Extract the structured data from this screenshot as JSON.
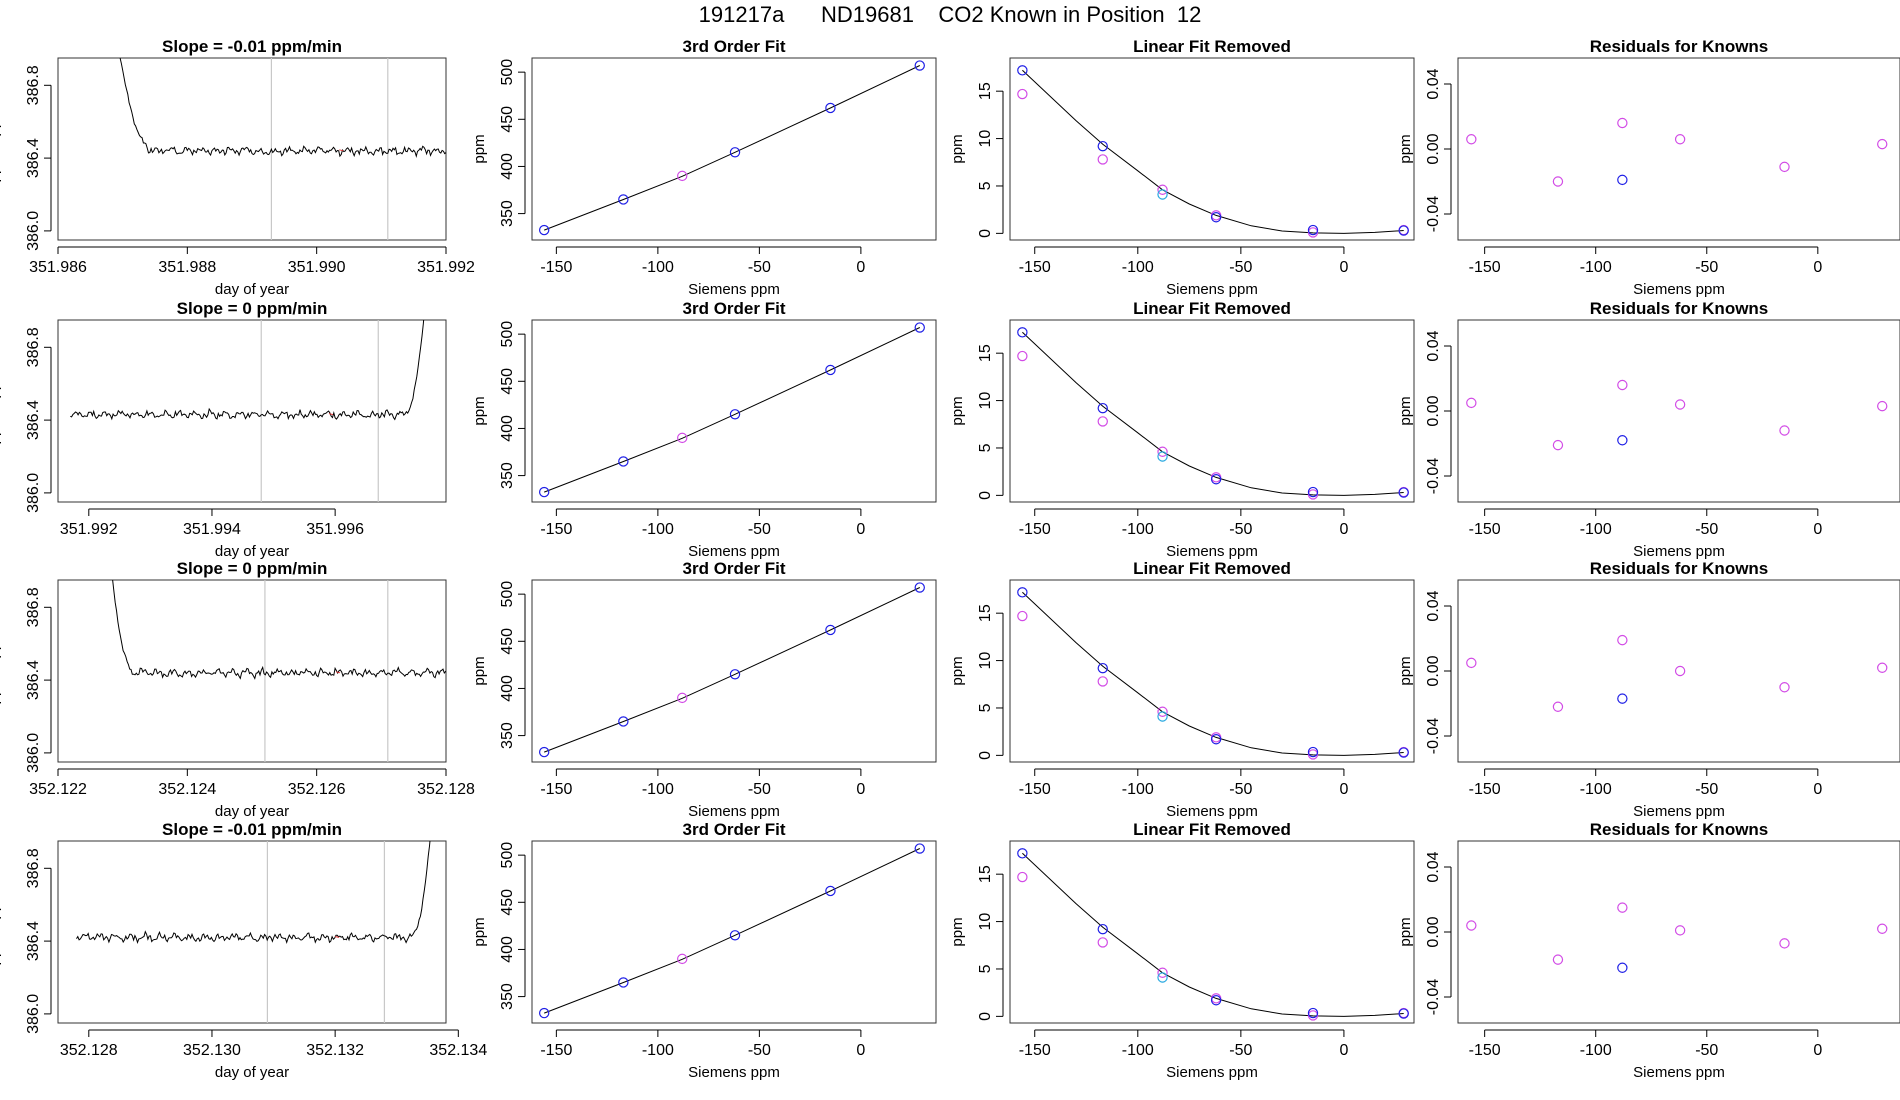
{
  "title": "191217a      ND19681    CO2 Known in Position  12",
  "colors": {
    "line": "#000000",
    "blue": "#1f1fe6",
    "magenta": "#d24be6",
    "cyan": "#27a8e0",
    "grey": "#c8c8c8",
    "red": "#e43a3a"
  },
  "chart_data": [
    {
      "type": "line",
      "row": 0,
      "title": "Slope =  -0.01  ppm/min",
      "xlabel": "day of year",
      "ylabel": "approx. ppm",
      "xlim": [
        351.986,
        351.992
      ],
      "ylim": [
        385.95,
        386.95
      ],
      "xticks": [
        351.986,
        351.988,
        351.99,
        351.992
      ],
      "xtick_labels": [
        "351.986",
        "351.988",
        "351.990",
        "351.992"
      ],
      "yticks": [
        386.0,
        386.4,
        386.8
      ],
      "ytick_labels": [
        "386.0",
        "386.4",
        "386.8"
      ],
      "vlines": [
        351.9893,
        351.9911
      ],
      "series": {
        "start": 351.9866,
        "end": 351.9922,
        "baseline": 386.44,
        "transient": "drop-in",
        "transient_end": 351.9875,
        "seed": 3
      }
    },
    {
      "type": "line",
      "row": 1,
      "title": "Slope =  0  ppm/min",
      "xlabel": "day of year",
      "ylabel": "approx. ppm",
      "xlim": [
        351.9915,
        351.9978
      ],
      "ylim": [
        385.95,
        386.95
      ],
      "xticks": [
        351.992,
        351.994,
        351.996
      ],
      "xtick_labels": [
        "351.992",
        "351.994",
        "351.996"
      ],
      "yticks": [
        386.0,
        386.4,
        386.8
      ],
      "ytick_labels": [
        "386.0",
        "386.4",
        "386.8"
      ],
      "vlines": [
        351.9948,
        351.9967
      ],
      "series": {
        "start": 351.9917,
        "end": 351.9976,
        "baseline": 386.43,
        "transient": "rise-out",
        "transient_start": 351.9971,
        "seed": 11
      }
    },
    {
      "type": "line",
      "row": 2,
      "title": "Slope =  0  ppm/min",
      "xlabel": "day of year",
      "ylabel": "approx. ppm",
      "xlim": [
        352.122,
        352.128
      ],
      "ylim": [
        385.95,
        386.95
      ],
      "xticks": [
        352.122,
        352.124,
        352.126,
        352.128
      ],
      "xtick_labels": [
        "352.122",
        "352.124",
        "352.126",
        "352.128"
      ],
      "yticks": [
        386.0,
        386.4,
        386.8
      ],
      "ytick_labels": [
        "386.0",
        "386.4",
        "386.8"
      ],
      "vlines": [
        352.1252,
        352.1271
      ],
      "series": {
        "start": 352.1226,
        "end": 352.1283,
        "baseline": 386.44,
        "transient": "drop-in",
        "transient_end": 352.1232,
        "seed": 21
      }
    },
    {
      "type": "line",
      "row": 3,
      "title": "Slope =  -0.01  ppm/min",
      "xlabel": "day of year",
      "ylabel": "approx. ppm",
      "xlim": [
        352.1275,
        352.1338
      ],
      "ylim": [
        385.95,
        386.95
      ],
      "xticks": [
        352.128,
        352.13,
        352.132,
        352.134
      ],
      "xtick_labels": [
        "352.128",
        "352.130",
        "352.132",
        "352.134"
      ],
      "yticks": [
        386.0,
        386.4,
        386.8
      ],
      "ytick_labels": [
        "386.0",
        "386.4",
        "386.8"
      ],
      "vlines": [
        352.1309,
        352.1328
      ],
      "series": {
        "start": 352.1278,
        "end": 352.1337,
        "baseline": 386.42,
        "transient": "rise-out",
        "transient_start": 352.1332,
        "seed": 37
      }
    },
    {
      "type": "scatter",
      "title": "3rd Order Fit",
      "xlabel": "Siemens ppm",
      "ylabel": "ppm",
      "xlim": [
        -162,
        37
      ],
      "ylim": [
        322,
        515
      ],
      "xticks": [
        -150,
        -100,
        -50,
        0
      ],
      "xtick_labels": [
        "-150",
        "-100",
        "-50",
        "0"
      ],
      "yticks": [
        350,
        400,
        450,
        500
      ],
      "ytick_labels": [
        "350",
        "400",
        "450",
        "500"
      ],
      "fit_curve": [
        [
          -156,
          332.5
        ],
        [
          -117,
          365
        ],
        [
          -88,
          389.5
        ],
        [
          -62,
          415
        ],
        [
          -15,
          462
        ],
        [
          29,
          507
        ]
      ],
      "points_blue": [
        [
          -156,
          332.5
        ],
        [
          -117,
          365
        ],
        [
          -62,
          415
        ],
        [
          -15,
          462
        ],
        [
          29,
          507
        ]
      ],
      "points_magenta": [
        [
          -88,
          390
        ]
      ]
    },
    {
      "type": "scatter",
      "title": "Linear Fit Removed",
      "xlabel": "Siemens ppm",
      "ylabel": "ppm",
      "xlim": [
        -162,
        34
      ],
      "ylim": [
        -0.7,
        18.5
      ],
      "xticks": [
        -150,
        -100,
        -50,
        0
      ],
      "xtick_labels": [
        "-150",
        "-100",
        "-50",
        "0"
      ],
      "yticks": [
        0,
        5,
        10,
        15
      ],
      "ytick_labels": [
        "0",
        "5",
        "10",
        "15"
      ],
      "fit_curve": [
        [
          -156,
          17.2
        ],
        [
          -130,
          11.9
        ],
        [
          -117,
          9.4
        ],
        [
          -100,
          6.6
        ],
        [
          -88,
          4.6
        ],
        [
          -75,
          3.1
        ],
        [
          -62,
          1.9
        ],
        [
          -45,
          0.8
        ],
        [
          -30,
          0.25
        ],
        [
          -15,
          0.05
        ],
        [
          0,
          0.0
        ],
        [
          15,
          0.1
        ],
        [
          29,
          0.3
        ]
      ],
      "points_blue": [
        [
          -156,
          17.2
        ],
        [
          -117,
          9.2
        ],
        [
          -62,
          1.7
        ],
        [
          -15,
          0.35
        ],
        [
          29,
          0.3
        ]
      ],
      "points_magenta": [
        [
          -156,
          14.7
        ],
        [
          -117,
          7.8
        ],
        [
          -88,
          4.6
        ],
        [
          -62,
          1.9
        ],
        [
          -15,
          0.1
        ],
        [
          29,
          0.35
        ]
      ],
      "points_cyan": [
        [
          -88,
          4.1
        ]
      ]
    },
    {
      "type": "scatter",
      "title": "Residuals for Knowns",
      "xlabel": "Siemens ppm",
      "ylabel": "ppm",
      "xlim": [
        -162,
        37
      ],
      "ylim": [
        -0.056,
        0.056
      ],
      "xticks": [
        -150,
        -100,
        -50,
        0
      ],
      "xtick_labels": [
        "-150",
        "-100",
        "-50",
        "0"
      ],
      "yticks": [
        -0.04,
        0.0,
        0.04
      ],
      "ytick_labels": [
        "-0.04",
        "0.00",
        "0.04"
      ],
      "rows": [
        {
          "magenta": [
            [
              -156,
              0.006
            ],
            [
              -117,
              -0.02
            ],
            [
              -88,
              0.016
            ],
            [
              -62,
              0.006
            ],
            [
              -15,
              -0.011
            ],
            [
              29,
              0.003
            ]
          ],
          "blue": [
            [
              -88,
              -0.019
            ]
          ]
        },
        {
          "magenta": [
            [
              -156,
              0.005
            ],
            [
              -117,
              -0.021
            ],
            [
              -88,
              0.016
            ],
            [
              -62,
              0.004
            ],
            [
              -15,
              -0.012
            ],
            [
              29,
              0.003
            ]
          ],
          "blue": [
            [
              -88,
              -0.018
            ]
          ]
        },
        {
          "magenta": [
            [
              -156,
              0.005
            ],
            [
              -117,
              -0.022
            ],
            [
              -88,
              0.019
            ],
            [
              -62,
              0.0
            ],
            [
              -15,
              -0.01
            ],
            [
              29,
              0.002
            ]
          ],
          "blue": [
            [
              -88,
              -0.017
            ]
          ]
        },
        {
          "magenta": [
            [
              -156,
              0.004
            ],
            [
              -117,
              -0.017
            ],
            [
              -88,
              0.015
            ],
            [
              -62,
              0.001
            ],
            [
              -15,
              -0.007
            ],
            [
              29,
              0.002
            ]
          ],
          "blue": [
            [
              -88,
              -0.022
            ]
          ]
        }
      ]
    }
  ]
}
